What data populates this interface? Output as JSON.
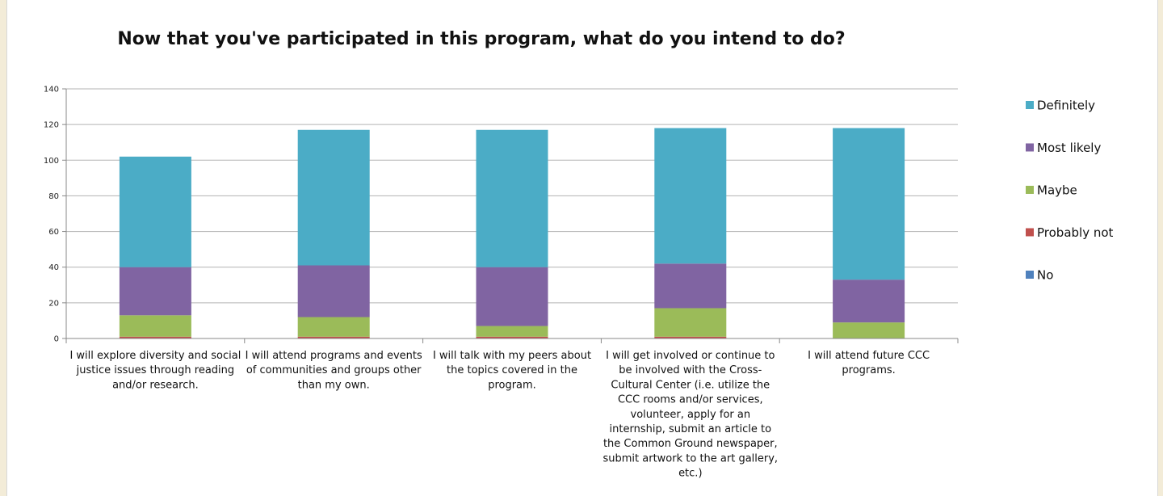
{
  "chart_data": {
    "type": "bar",
    "stacked": true,
    "title": "Now that you've participated in this program, what do you intend to do?",
    "categories": [
      "I will explore diversity and social justice issues through reading and/or research.",
      "I will attend programs and events of communities and groups other than my own.",
      "I will talk with my peers about the topics covered in the program.",
      "I will get involved or continue to be involved with the Cross-Cultural Center (i.e. utilize the CCC rooms and/or services, volunteer, apply for an internship, submit an article to the Common Ground newspaper, submit artwork to the art gallery, etc.)",
      "I will attend future CCC programs."
    ],
    "category_lines": [
      [
        "I will explore diversity and social",
        "justice issues through reading",
        "and/or research."
      ],
      [
        "I will attend programs and events",
        "of communities and groups other",
        "than my own."
      ],
      [
        "I will talk with my peers about",
        "the topics covered in the",
        "program."
      ],
      [
        "I will get involved or continue to",
        "be involved with the Cross-",
        "Cultural Center (i.e. utilize the",
        "CCC rooms and/or services,",
        "volunteer, apply for an",
        "internship, submit an article to",
        "the Common Ground newspaper,",
        "submit artwork to the art gallery,",
        "etc.)"
      ],
      [
        "I will attend future CCC",
        "programs."
      ]
    ],
    "series": [
      {
        "name": "No",
        "color": "#4f81bd",
        "values": [
          0,
          0,
          0,
          0,
          0
        ]
      },
      {
        "name": "Probably not",
        "color": "#c0504d",
        "values": [
          1,
          1,
          1,
          1,
          0
        ]
      },
      {
        "name": "Maybe",
        "color": "#9bbb59",
        "values": [
          12,
          11,
          6,
          16,
          9
        ]
      },
      {
        "name": "Most likely",
        "color": "#8064a2",
        "values": [
          27,
          29,
          33,
          25,
          24
        ]
      },
      {
        "name": "Definitely",
        "color": "#4bacc6",
        "values": [
          62,
          76,
          77,
          76,
          85
        ]
      }
    ],
    "legend_order": [
      "Definitely",
      "Most likely",
      "Maybe",
      "Probably not",
      "No"
    ],
    "ylim": [
      0,
      140
    ],
    "yticks": [
      0,
      20,
      40,
      60,
      80,
      100,
      120,
      140
    ],
    "xlabel": "",
    "ylabel": "",
    "grid": true,
    "legend": "right"
  }
}
